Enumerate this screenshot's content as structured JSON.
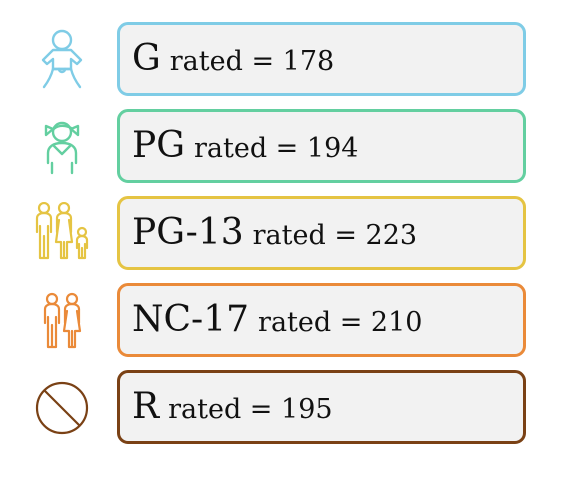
{
  "chart_data": {
    "type": "table",
    "title": "",
    "categories": [
      "G",
      "PG",
      "PG-13",
      "NC-17",
      "R"
    ],
    "values": [
      178,
      194,
      223,
      210,
      195
    ],
    "label_suffix": "rated =",
    "rows": [
      {
        "rating": "G",
        "text": "rated = 178",
        "count": 178,
        "color": "#7fcce6",
        "icon": "baby-icon"
      },
      {
        "rating": "PG",
        "text": "rated = 194",
        "count": 194,
        "color": "#63cfa0",
        "icon": "child-icon"
      },
      {
        "rating": "PG-13",
        "text": "rated = 223",
        "count": 223,
        "color": "#e5c443",
        "icon": "family-icon"
      },
      {
        "rating": "NC-17",
        "text": "rated = 210",
        "count": 210,
        "color": "#ea8a39",
        "icon": "couple-icon"
      },
      {
        "rating": "R",
        "text": "rated = 195",
        "count": 195,
        "color": "#7a4115",
        "icon": "prohibited-icon"
      }
    ]
  }
}
